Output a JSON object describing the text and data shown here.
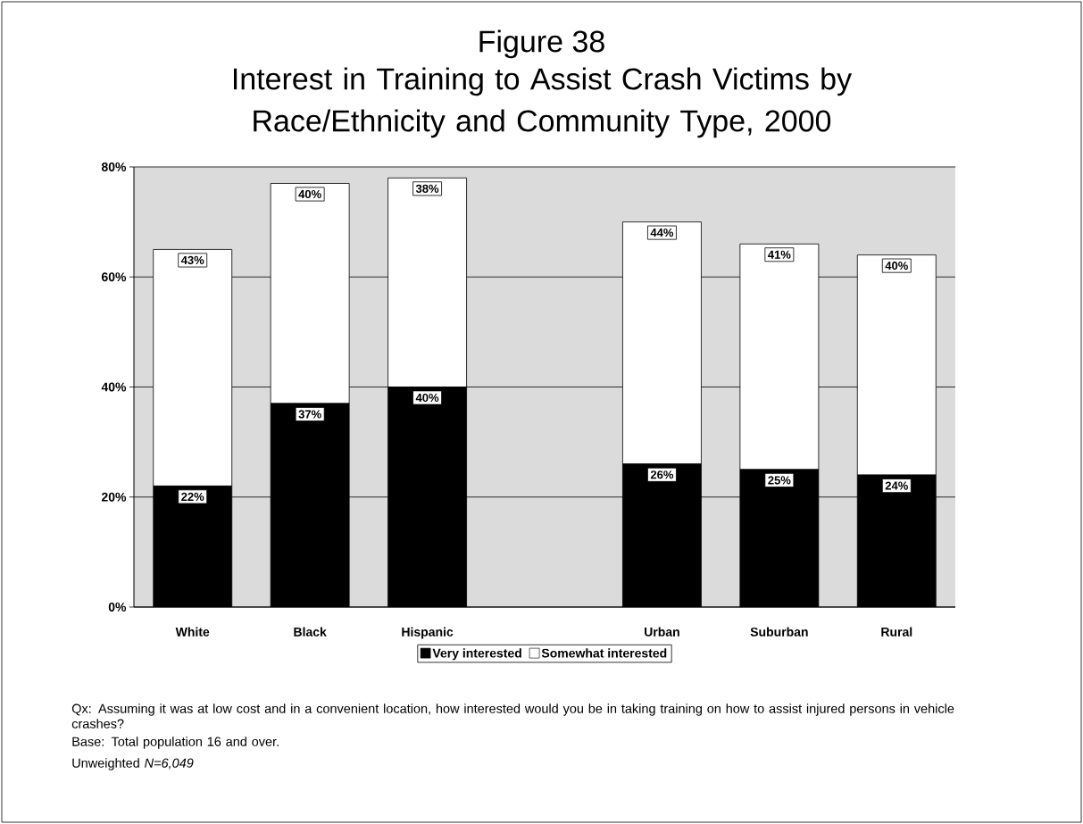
{
  "chart_data": {
    "type": "bar",
    "stacked": true,
    "title": "Figure 38",
    "subtitle": "Interest in Training to Assist Crash Victims by Race/Ethnicity and Community Type, 2000",
    "categories": [
      "White",
      "Black",
      "Hispanic",
      null,
      "Urban",
      "Suburban",
      "Rural"
    ],
    "series": [
      {
        "name": "Very interested",
        "color": "#000000",
        "values": [
          22,
          37,
          40,
          null,
          26,
          25,
          24
        ],
        "value_labels": [
          "22%",
          "37%",
          "40%",
          null,
          "26%",
          "25%",
          "24%"
        ]
      },
      {
        "name": "Somewhat interested",
        "color": "#ffffff",
        "values": [
          43,
          40,
          38,
          null,
          44,
          41,
          40
        ],
        "value_labels": [
          "43%",
          "40%",
          "38%",
          null,
          "44%",
          "41%",
          "40%"
        ]
      }
    ],
    "ylim": [
      0,
      80
    ],
    "yticks": [
      {
        "value": 0,
        "label": "0%"
      },
      {
        "value": 20,
        "label": "20%"
      },
      {
        "value": 40,
        "label": "40%"
      },
      {
        "value": 60,
        "label": "60%"
      },
      {
        "value": 80,
        "label": "80%"
      }
    ],
    "grid": "y",
    "legend": "bottom",
    "annotations": [
      "Qx:  Assuming it was at low cost and in a convenient location, how interested would you be in taking training on how to assist injured persons in vehicle crashes?",
      "Base: Total population 16 and over.",
      "Unweighted *N=6,049*"
    ]
  }
}
